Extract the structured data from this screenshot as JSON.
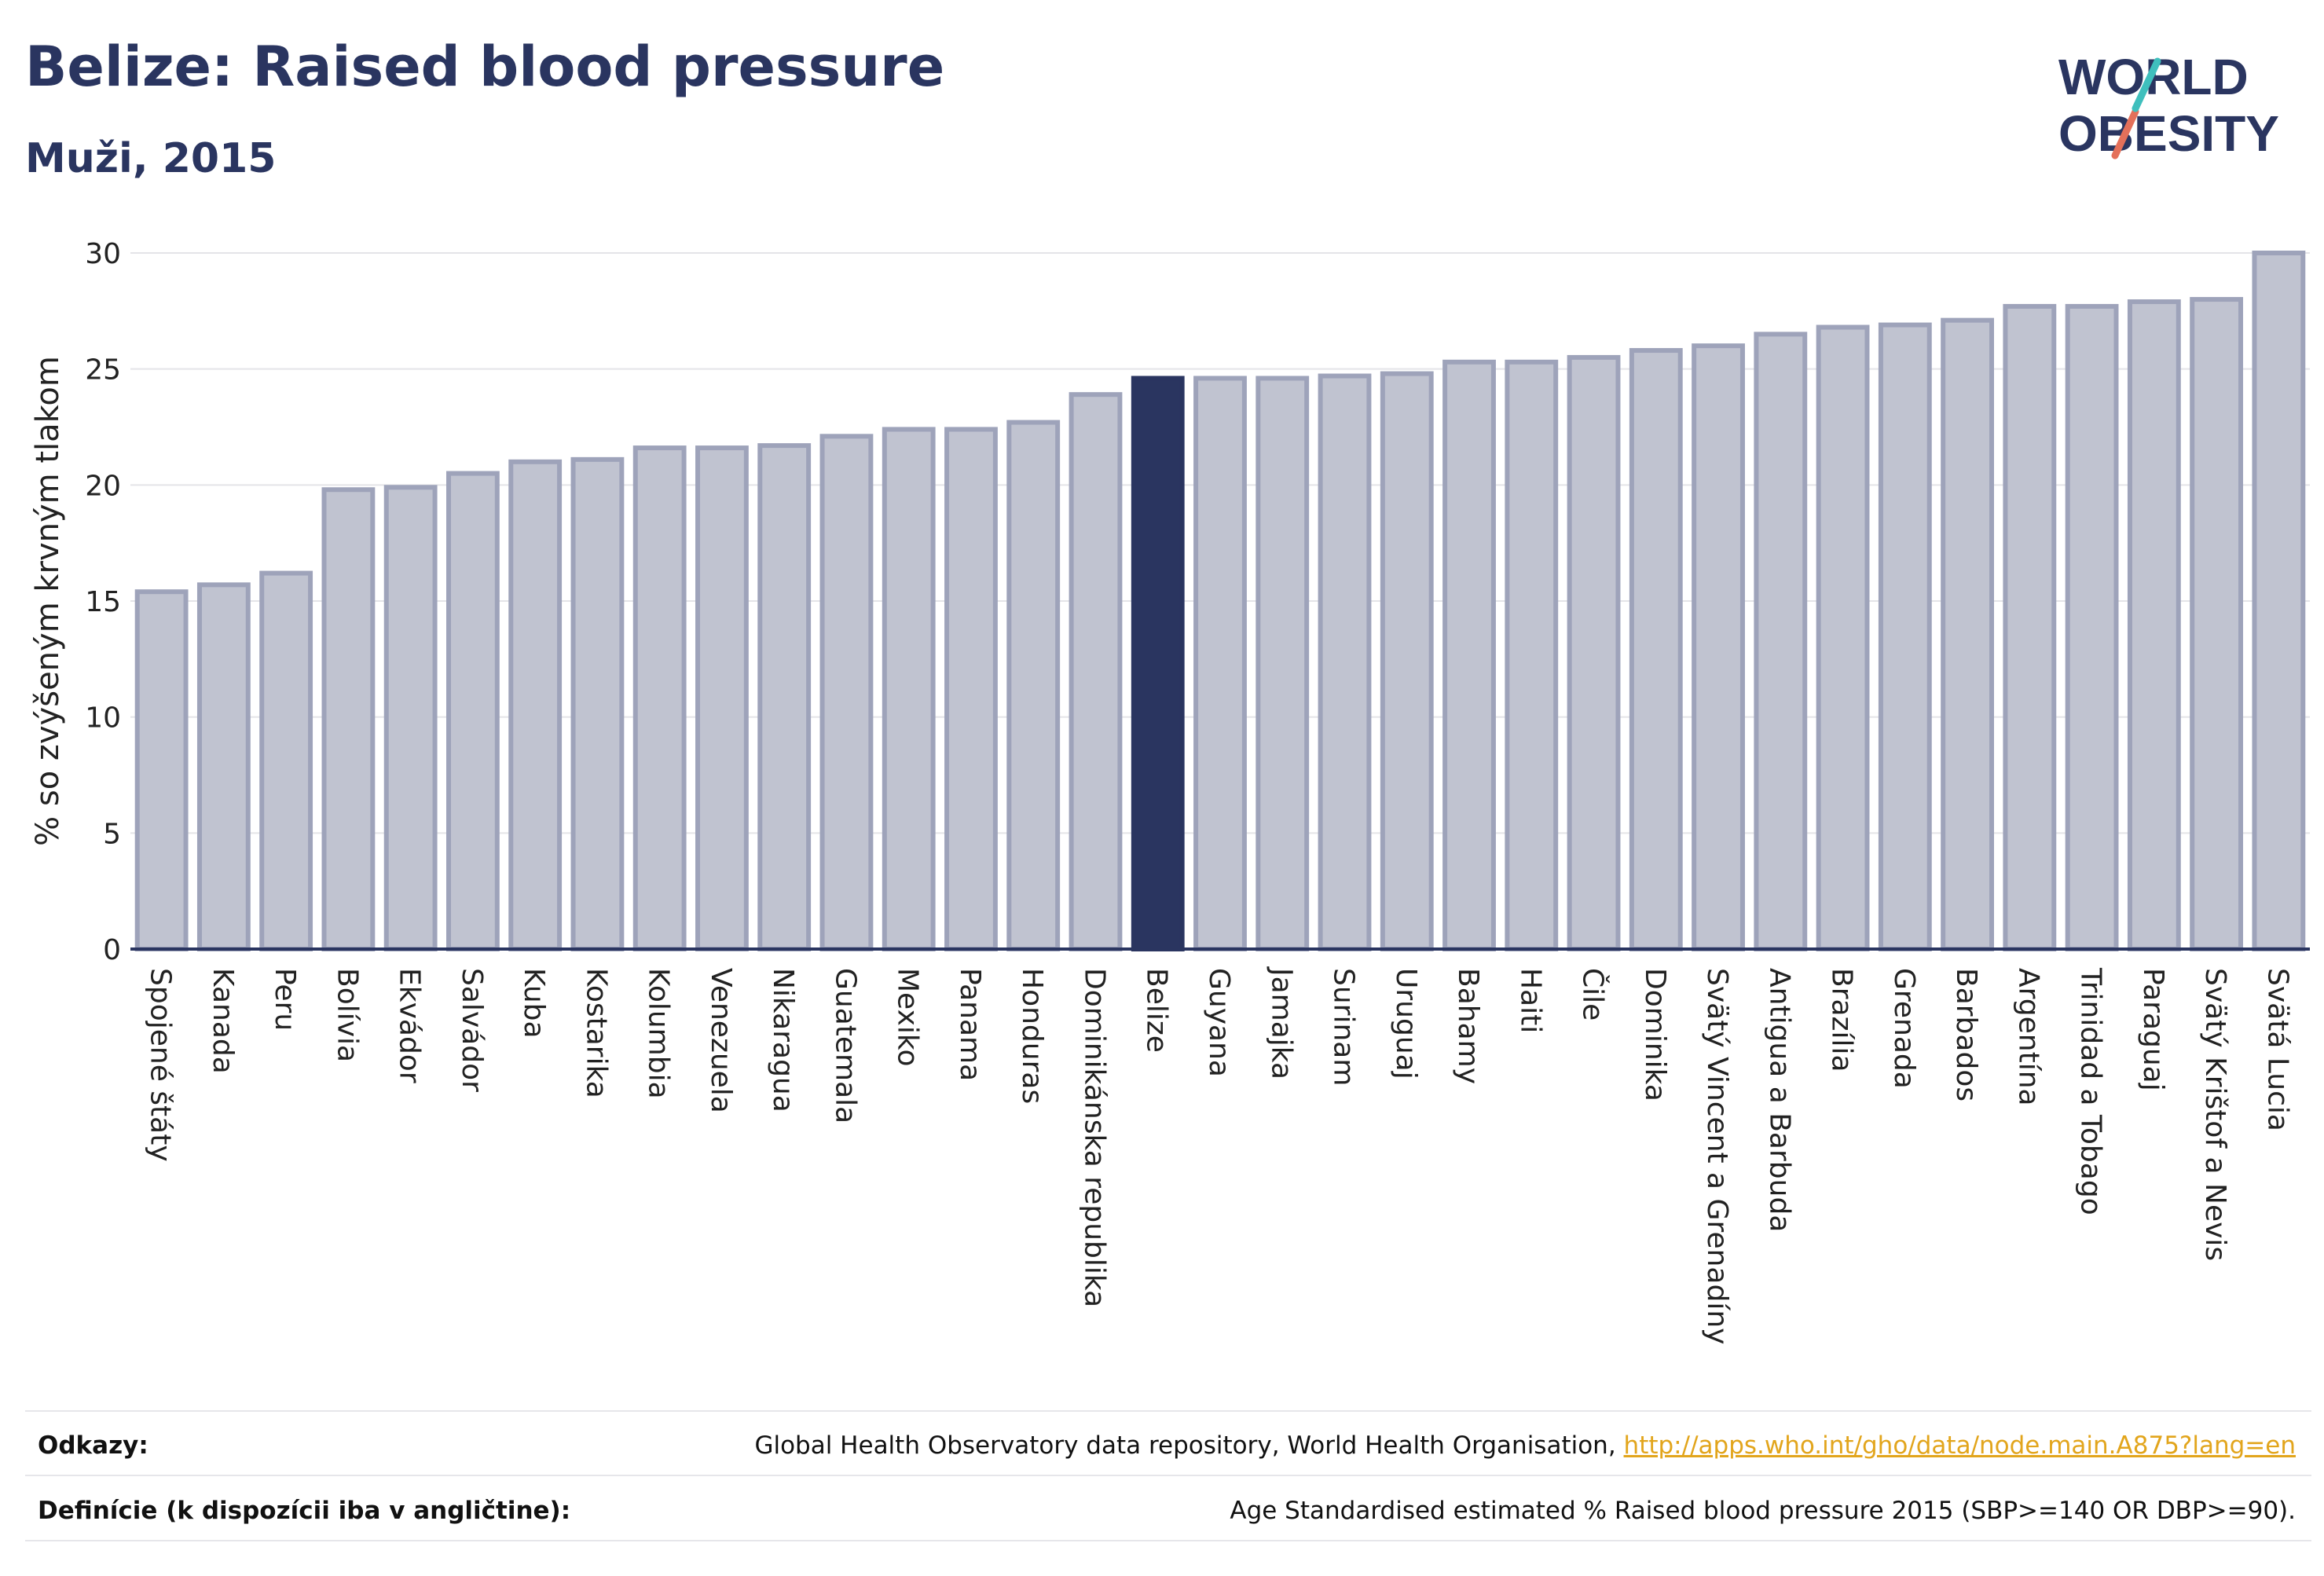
{
  "title": "Belize: Raised blood pressure",
  "subtitle": "Muži, 2015",
  "logo": {
    "line1": "WORLD",
    "line2": "OBESITY"
  },
  "chart_data": {
    "type": "bar",
    "ylabel": "% so zvýšeným krvným tlakom",
    "ylim": [
      0,
      30
    ],
    "yticks": [
      0,
      5,
      10,
      15,
      20,
      25,
      30
    ],
    "grid": true,
    "highlight": "Belize",
    "colors": {
      "bar": "#c0c3d0",
      "bar_border": "#9ea3ba",
      "highlight": "#2a3560",
      "grid": "#e4e4e8",
      "axis": "#2a3560"
    },
    "categories": [
      "Spojené štáty",
      "Kanada",
      "Peru",
      "Bolívia",
      "Ekvádor",
      "Salvádor",
      "Kuba",
      "Kostarika",
      "Kolumbia",
      "Venezuela",
      "Nikaragua",
      "Guatemala",
      "Mexiko",
      "Panama",
      "Honduras",
      "Dominikánska republika",
      "Belize",
      "Guyana",
      "Jamajka",
      "Surinam",
      "Uruguaj",
      "Bahamy",
      "Haiti",
      "Čile",
      "Dominika",
      "Svätý Vincent a Grenadíny",
      "Antigua a Barbuda",
      "Brazília",
      "Grenada",
      "Barbados",
      "Argentína",
      "Trinidad a Tobago",
      "Paraguaj",
      "Svätý Krištof a Nevis",
      "Svätá Lucia"
    ],
    "values": [
      15.4,
      15.7,
      16.2,
      19.8,
      19.9,
      20.5,
      21.0,
      21.1,
      21.6,
      21.6,
      21.7,
      22.1,
      22.4,
      22.4,
      22.7,
      23.9,
      24.6,
      24.6,
      24.6,
      24.7,
      24.8,
      25.3,
      25.3,
      25.5,
      25.8,
      26.0,
      26.5,
      26.8,
      26.9,
      27.1,
      27.7,
      27.7,
      27.9,
      28.0,
      30.0
    ]
  },
  "footer": {
    "sources_label": "Odkazy:",
    "sources_text": "Global Health Observatory data repository, World Health Organisation, ",
    "sources_link": "http://apps.who.int/gho/data/node.main.A875?lang=en",
    "definitions_label": "Definície (k dispozícii iba v angličtine):",
    "definitions_text": "Age Standardised estimated % Raised blood pressure 2015 (SBP>=140 OR DBP>=90)."
  }
}
